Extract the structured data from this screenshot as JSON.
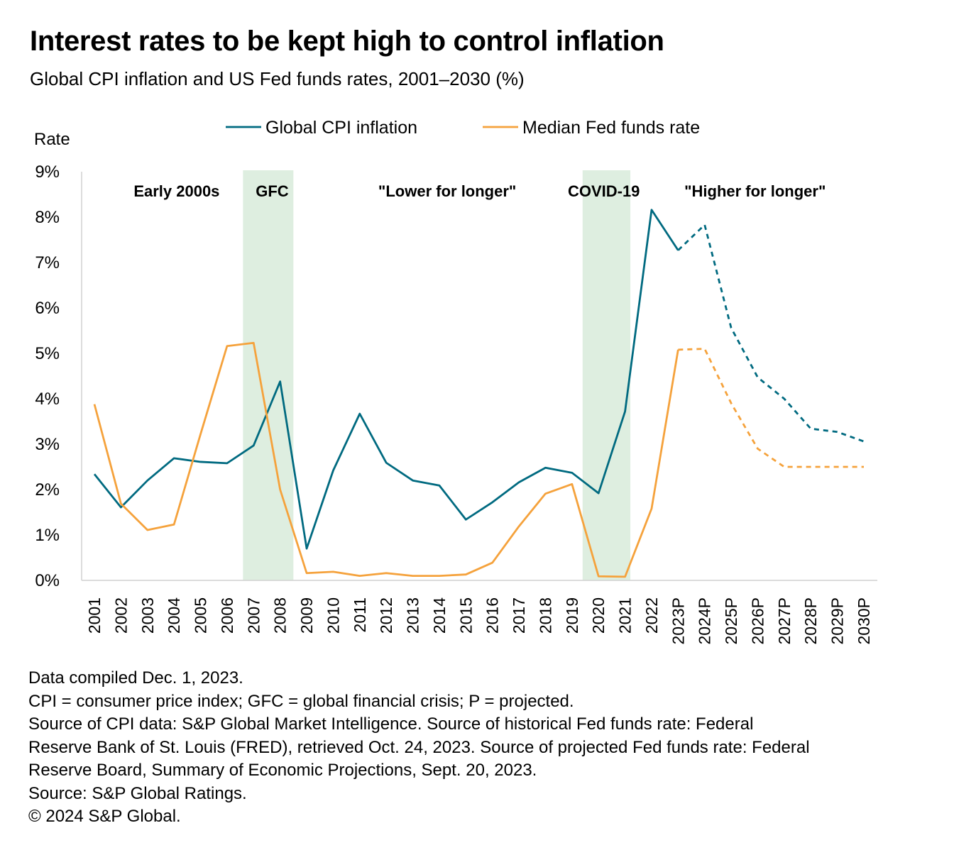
{
  "title": "Interest rates to be kept high to control inflation",
  "subtitle": "Global CPI inflation and US Fed funds rates, 2001–2030 (%)",
  "notes": [
    "Data compiled Dec. 1, 2023.",
    "CPI = consumer price index; GFC = global financial crisis; P = projected.",
    "Source of CPI data: S&P Global Market Intelligence. Source of historical Fed funds rate: Federal",
    "Reserve Bank of St. Louis (FRED), retrieved Oct. 24, 2023. Source of projected Fed funds rate: Federal",
    "Reserve Board, Summary of Economic Projections, Sept. 20, 2023.",
    "Source: S&P Global Ratings.",
    "© 2024 S&P Global."
  ],
  "chart_data": {
    "type": "line",
    "ylabel": "Rate",
    "ylim": [
      0,
      9
    ],
    "yticks": [
      "0%",
      "1%",
      "2%",
      "3%",
      "4%",
      "5%",
      "6%",
      "7%",
      "8%",
      "9%"
    ],
    "grid": false,
    "legend_placement": "top",
    "categories": [
      "2001",
      "2002",
      "2003",
      "2004",
      "2005",
      "2006",
      "2007",
      "2008",
      "2009",
      "2010",
      "2011",
      "2012",
      "2013",
      "2014",
      "2015",
      "2016",
      "2017",
      "2018",
      "2019",
      "2020",
      "2021",
      "2022",
      "2023P",
      "2024P",
      "2025P",
      "2026P",
      "2027P",
      "2028P",
      "2029P",
      "2030P"
    ],
    "projection_start": "2023P",
    "series": [
      {
        "name": "Global CPI inflation",
        "color": "#006a80",
        "values": [
          2.34,
          1.61,
          2.2,
          2.69,
          2.61,
          2.58,
          2.97,
          4.38,
          0.7,
          2.42,
          3.67,
          2.59,
          2.2,
          2.09,
          1.34,
          1.72,
          2.16,
          2.48,
          2.37,
          1.92,
          3.72,
          8.16,
          7.27,
          7.83,
          5.56,
          4.47,
          4.0,
          3.34,
          3.27,
          3.06
        ]
      },
      {
        "name": "Median Fed funds rate",
        "color": "#f5a23c",
        "values": [
          3.88,
          1.69,
          1.11,
          1.23,
          3.22,
          5.16,
          5.23,
          2.0,
          0.16,
          0.19,
          0.1,
          0.16,
          0.1,
          0.1,
          0.13,
          0.39,
          1.19,
          1.91,
          2.12,
          0.09,
          0.08,
          1.58,
          5.08,
          5.1,
          3.9,
          2.9,
          2.5,
          2.5,
          2.5,
          2.5
        ]
      }
    ],
    "shaded_periods": [
      {
        "label": "GFC",
        "from": 2006.6,
        "to": 2008.5,
        "color": "#deeee0"
      },
      {
        "label": "COVID-19",
        "from": 2019.4,
        "to": 2021.2,
        "color": "#deeee0"
      }
    ],
    "annotations": [
      {
        "text": "Early 2000s",
        "at": 2004.1
      },
      {
        "text": "GFC",
        "at": 2007.7
      },
      {
        "text": "\"Lower for longer\"",
        "at": 2014.3
      },
      {
        "text": "COVID-19",
        "at": 2020.2
      },
      {
        "text": "\"Higher for longer\"",
        "at": 2025.9
      }
    ]
  }
}
